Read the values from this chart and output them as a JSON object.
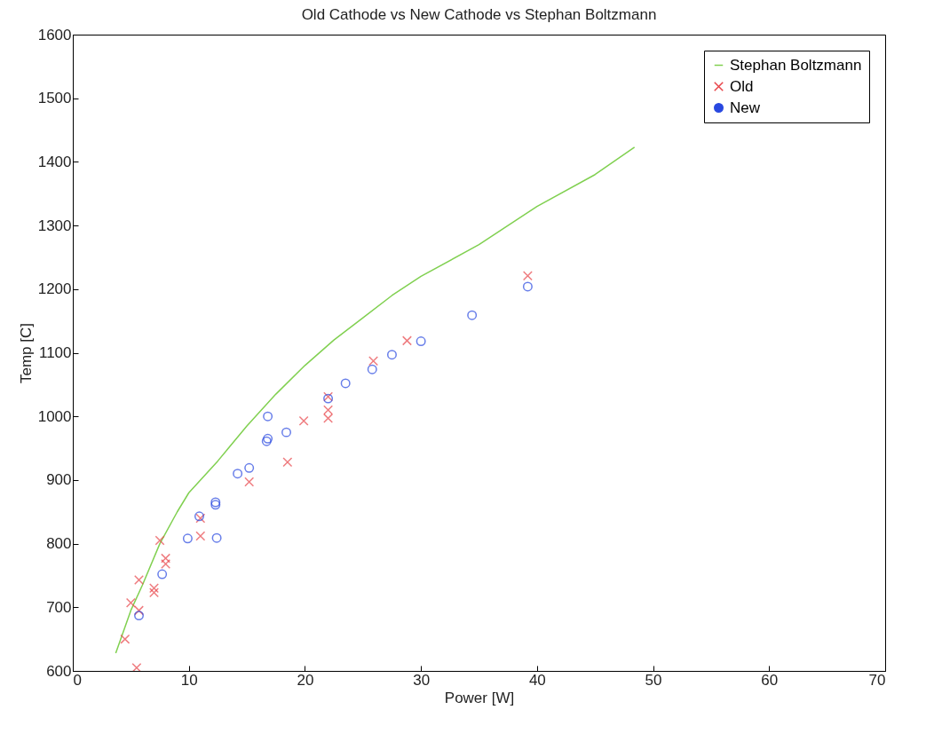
{
  "chart_data": {
    "type": "scatter",
    "title": "Old Cathode vs New Cathode vs Stephan Boltzmann",
    "xlabel": "Power [W]",
    "ylabel": "Temp [C]",
    "xlim": [
      0,
      70
    ],
    "xticks": [
      0,
      10,
      20,
      30,
      40,
      50,
      60,
      70
    ],
    "ylim": [
      600,
      1600
    ],
    "yticks": [
      600,
      700,
      800,
      900,
      1000,
      1100,
      1200,
      1300,
      1400,
      1500,
      1600
    ],
    "grid": false,
    "legend": "top right",
    "series": [
      {
        "name": "Stephan Boltzmann",
        "type": "line",
        "line_style": "solid",
        "color": "#80d050",
        "x": [
          3.7,
          5,
          6,
          7.5,
          9,
          10,
          12.5,
          15,
          17.5,
          20,
          22.5,
          25,
          27.5,
          30,
          35,
          40,
          45,
          48.4
        ],
        "values": [
          628,
          695,
          735,
          800,
          850,
          880,
          930,
          985,
          1035,
          1080,
          1120,
          1155,
          1190,
          1220,
          1270,
          1330,
          1380,
          1423
        ]
      },
      {
        "name": "Old",
        "type": "scatter",
        "marker": "cross",
        "color": "#e8454a",
        "x": [
          4.5,
          5.5,
          5,
          5.7,
          5.7,
          7,
          7,
          7.5,
          8,
          8,
          11,
          11,
          15.2,
          18.5,
          19.9,
          22,
          22,
          22,
          25.9,
          28.8,
          39.2
        ],
        "values": [
          650,
          605,
          707,
          743,
          695,
          730,
          723,
          805,
          777,
          768,
          812,
          840,
          897,
          928,
          993,
          1031,
          1010,
          997,
          1087,
          1119,
          1221
        ]
      },
      {
        "name": "New",
        "type": "scatter",
        "marker": "circle",
        "color": "#2848e0",
        "x": [
          5.7,
          7.7,
          9.9,
          12.4,
          10.9,
          12.3,
          12.3,
          14.2,
          15.2,
          16.7,
          16.8,
          16.8,
          18.4,
          22,
          23.5,
          25.8,
          27.5,
          30,
          34.4,
          39.2
        ],
        "values": [
          687,
          752,
          808,
          809,
          843,
          861,
          865,
          910,
          919,
          961,
          965,
          1000,
          975,
          1028,
          1052,
          1074,
          1097,
          1118,
          1159,
          1204
        ]
      }
    ]
  }
}
